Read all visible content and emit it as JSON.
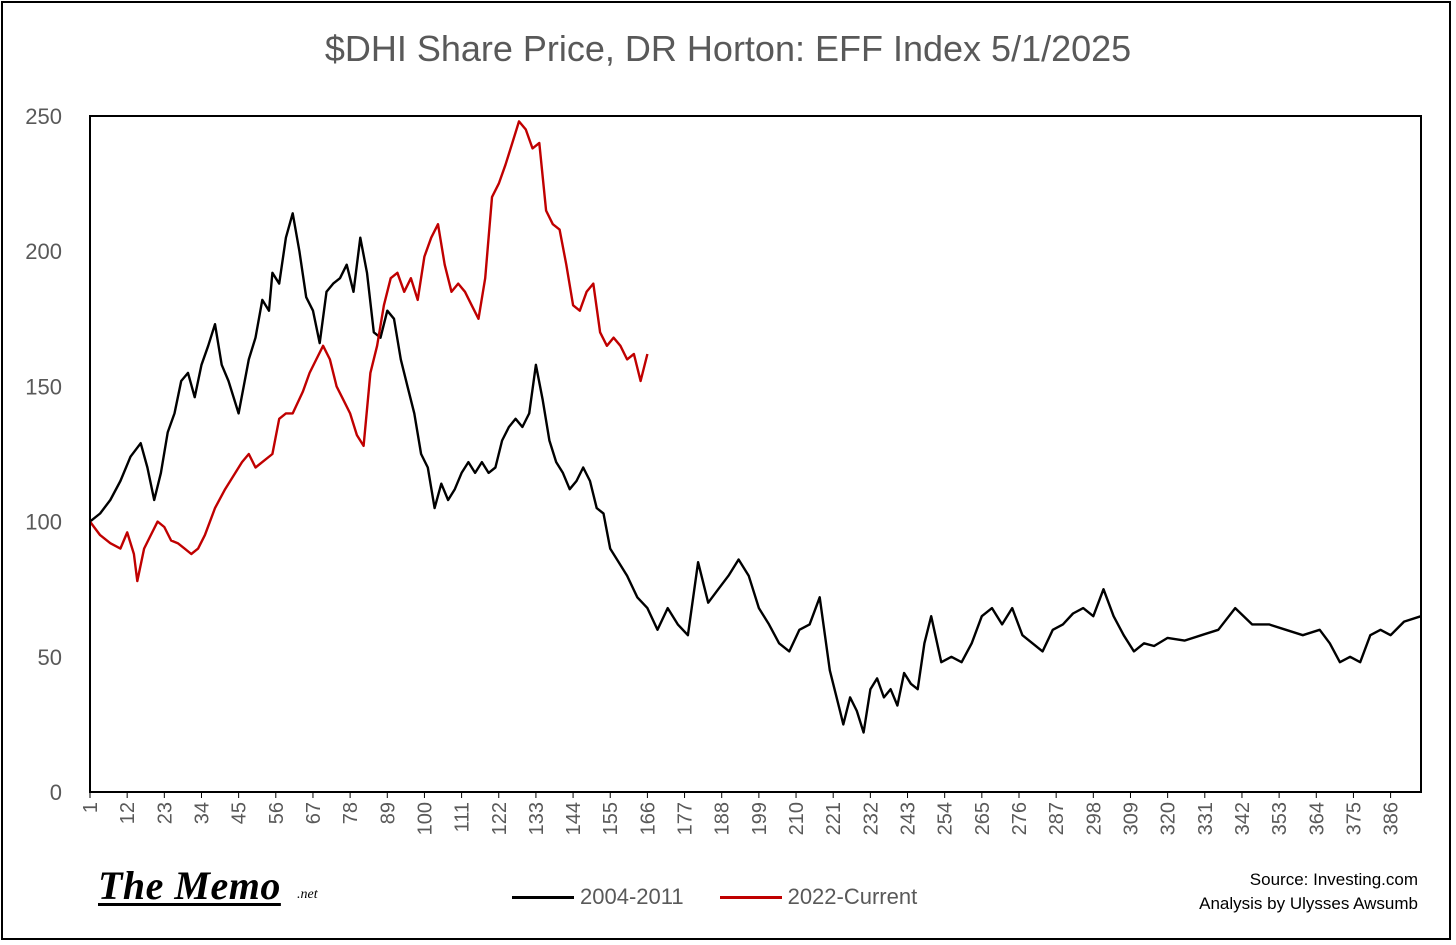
{
  "title": "$DHI Share Price, DR Horton: EFF Index 5/1/2025",
  "logo": {
    "text": "The Memo",
    "suffix": ".net"
  },
  "source": {
    "line1": "Source: Investing.com",
    "line2": "Analysis by Ulysses Awsumb"
  },
  "chart_data": {
    "type": "line",
    "title": "$DHI Share Price, DR Horton: EFF Index 5/1/2025",
    "xlabel": "",
    "ylabel": "",
    "xlim": [
      1,
      395
    ],
    "ylim": [
      0,
      250
    ],
    "y_ticks": [
      0,
      50,
      100,
      150,
      200,
      250
    ],
    "x_ticks": [
      1,
      12,
      23,
      34,
      45,
      56,
      67,
      78,
      89,
      100,
      111,
      122,
      133,
      144,
      155,
      166,
      177,
      188,
      199,
      210,
      221,
      232,
      243,
      254,
      265,
      276,
      287,
      298,
      309,
      320,
      331,
      342,
      353,
      364,
      375,
      386
    ],
    "grid": false,
    "legend_position": "bottom",
    "series": [
      {
        "name": "2004-2011",
        "color": "#000000",
        "x": [
          1,
          4,
          7,
          10,
          13,
          16,
          18,
          20,
          22,
          24,
          26,
          28,
          30,
          32,
          34,
          36,
          38,
          40,
          42,
          45,
          48,
          50,
          52,
          54,
          55,
          57,
          59,
          61,
          63,
          65,
          67,
          69,
          71,
          73,
          75,
          77,
          79,
          81,
          83,
          85,
          87,
          89,
          91,
          93,
          95,
          97,
          99,
          101,
          103,
          105,
          107,
          109,
          111,
          113,
          115,
          117,
          119,
          121,
          123,
          125,
          127,
          129,
          131,
          133,
          135,
          137,
          139,
          141,
          143,
          145,
          147,
          149,
          151,
          153,
          155,
          157,
          160,
          163,
          166,
          169,
          172,
          175,
          178,
          181,
          184,
          187,
          190,
          193,
          196,
          199,
          202,
          205,
          208,
          211,
          214,
          217,
          220,
          223,
          224,
          226,
          228,
          230,
          232,
          234,
          236,
          238,
          240,
          242,
          244,
          246,
          248,
          250,
          253,
          256,
          259,
          262,
          265,
          268,
          271,
          274,
          277,
          280,
          283,
          286,
          289,
          292,
          295,
          298,
          301,
          304,
          307,
          310,
          313,
          316,
          320,
          325,
          330,
          335,
          340,
          345,
          350,
          355,
          360,
          365,
          368,
          371,
          374,
          377,
          380,
          383,
          386,
          390,
          395
        ],
        "values": [
          100,
          103,
          108,
          115,
          124,
          129,
          120,
          108,
          118,
          133,
          140,
          152,
          155,
          146,
          158,
          165,
          173,
          158,
          152,
          140,
          160,
          168,
          182,
          178,
          192,
          188,
          205,
          214,
          200,
          183,
          178,
          166,
          185,
          188,
          190,
          195,
          185,
          205,
          192,
          170,
          168,
          178,
          175,
          160,
          150,
          140,
          125,
          120,
          105,
          114,
          108,
          112,
          118,
          122,
          118,
          122,
          118,
          120,
          130,
          135,
          138,
          135,
          140,
          158,
          145,
          130,
          122,
          118,
          112,
          115,
          120,
          115,
          105,
          103,
          90,
          86,
          80,
          72,
          68,
          60,
          68,
          62,
          58,
          85,
          70,
          75,
          80,
          86,
          80,
          68,
          62,
          55,
          52,
          60,
          62,
          72,
          45,
          30,
          25,
          35,
          30,
          22,
          38,
          42,
          35,
          38,
          32,
          44,
          40,
          38,
          55,
          65,
          48,
          50,
          48,
          55,
          65,
          68,
          62,
          68,
          58,
          55,
          52,
          60,
          62,
          66,
          68,
          65,
          75,
          65,
          58,
          52,
          55,
          54,
          57,
          56,
          58,
          60,
          68,
          62,
          62,
          60,
          58,
          60,
          55,
          48,
          50,
          48,
          58,
          60,
          58,
          63,
          65
        ]
      },
      {
        "name": "2022-Current",
        "color": "#C00000",
        "x": [
          1,
          4,
          7,
          10,
          12,
          14,
          15,
          17,
          19,
          21,
          23,
          25,
          27,
          29,
          31,
          33,
          35,
          38,
          41,
          44,
          46,
          48,
          50,
          52,
          55,
          57,
          59,
          61,
          64,
          66,
          68,
          70,
          72,
          74,
          76,
          78,
          80,
          82,
          84,
          86,
          88,
          90,
          92,
          94,
          96,
          98,
          100,
          102,
          104,
          106,
          108,
          110,
          112,
          114,
          116,
          118,
          120,
          122,
          124,
          126,
          128,
          130,
          132,
          134,
          136,
          138,
          140,
          142,
          144,
          146,
          148,
          150,
          152,
          154,
          156,
          158,
          160,
          162,
          164,
          166
        ],
        "values": [
          100,
          95,
          92,
          90,
          96,
          88,
          78,
          90,
          95,
          100,
          98,
          93,
          92,
          90,
          88,
          90,
          95,
          105,
          112,
          118,
          122,
          125,
          120,
          122,
          125,
          138,
          140,
          140,
          148,
          155,
          160,
          165,
          160,
          150,
          145,
          140,
          132,
          128,
          155,
          165,
          180,
          190,
          192,
          185,
          190,
          182,
          198,
          205,
          210,
          195,
          185,
          188,
          185,
          180,
          175,
          190,
          220,
          225,
          232,
          240,
          248,
          245,
          238,
          240,
          215,
          210,
          208,
          195,
          180,
          178,
          185,
          188,
          170,
          165,
          168,
          165,
          160,
          162,
          152,
          162
        ]
      }
    ]
  }
}
